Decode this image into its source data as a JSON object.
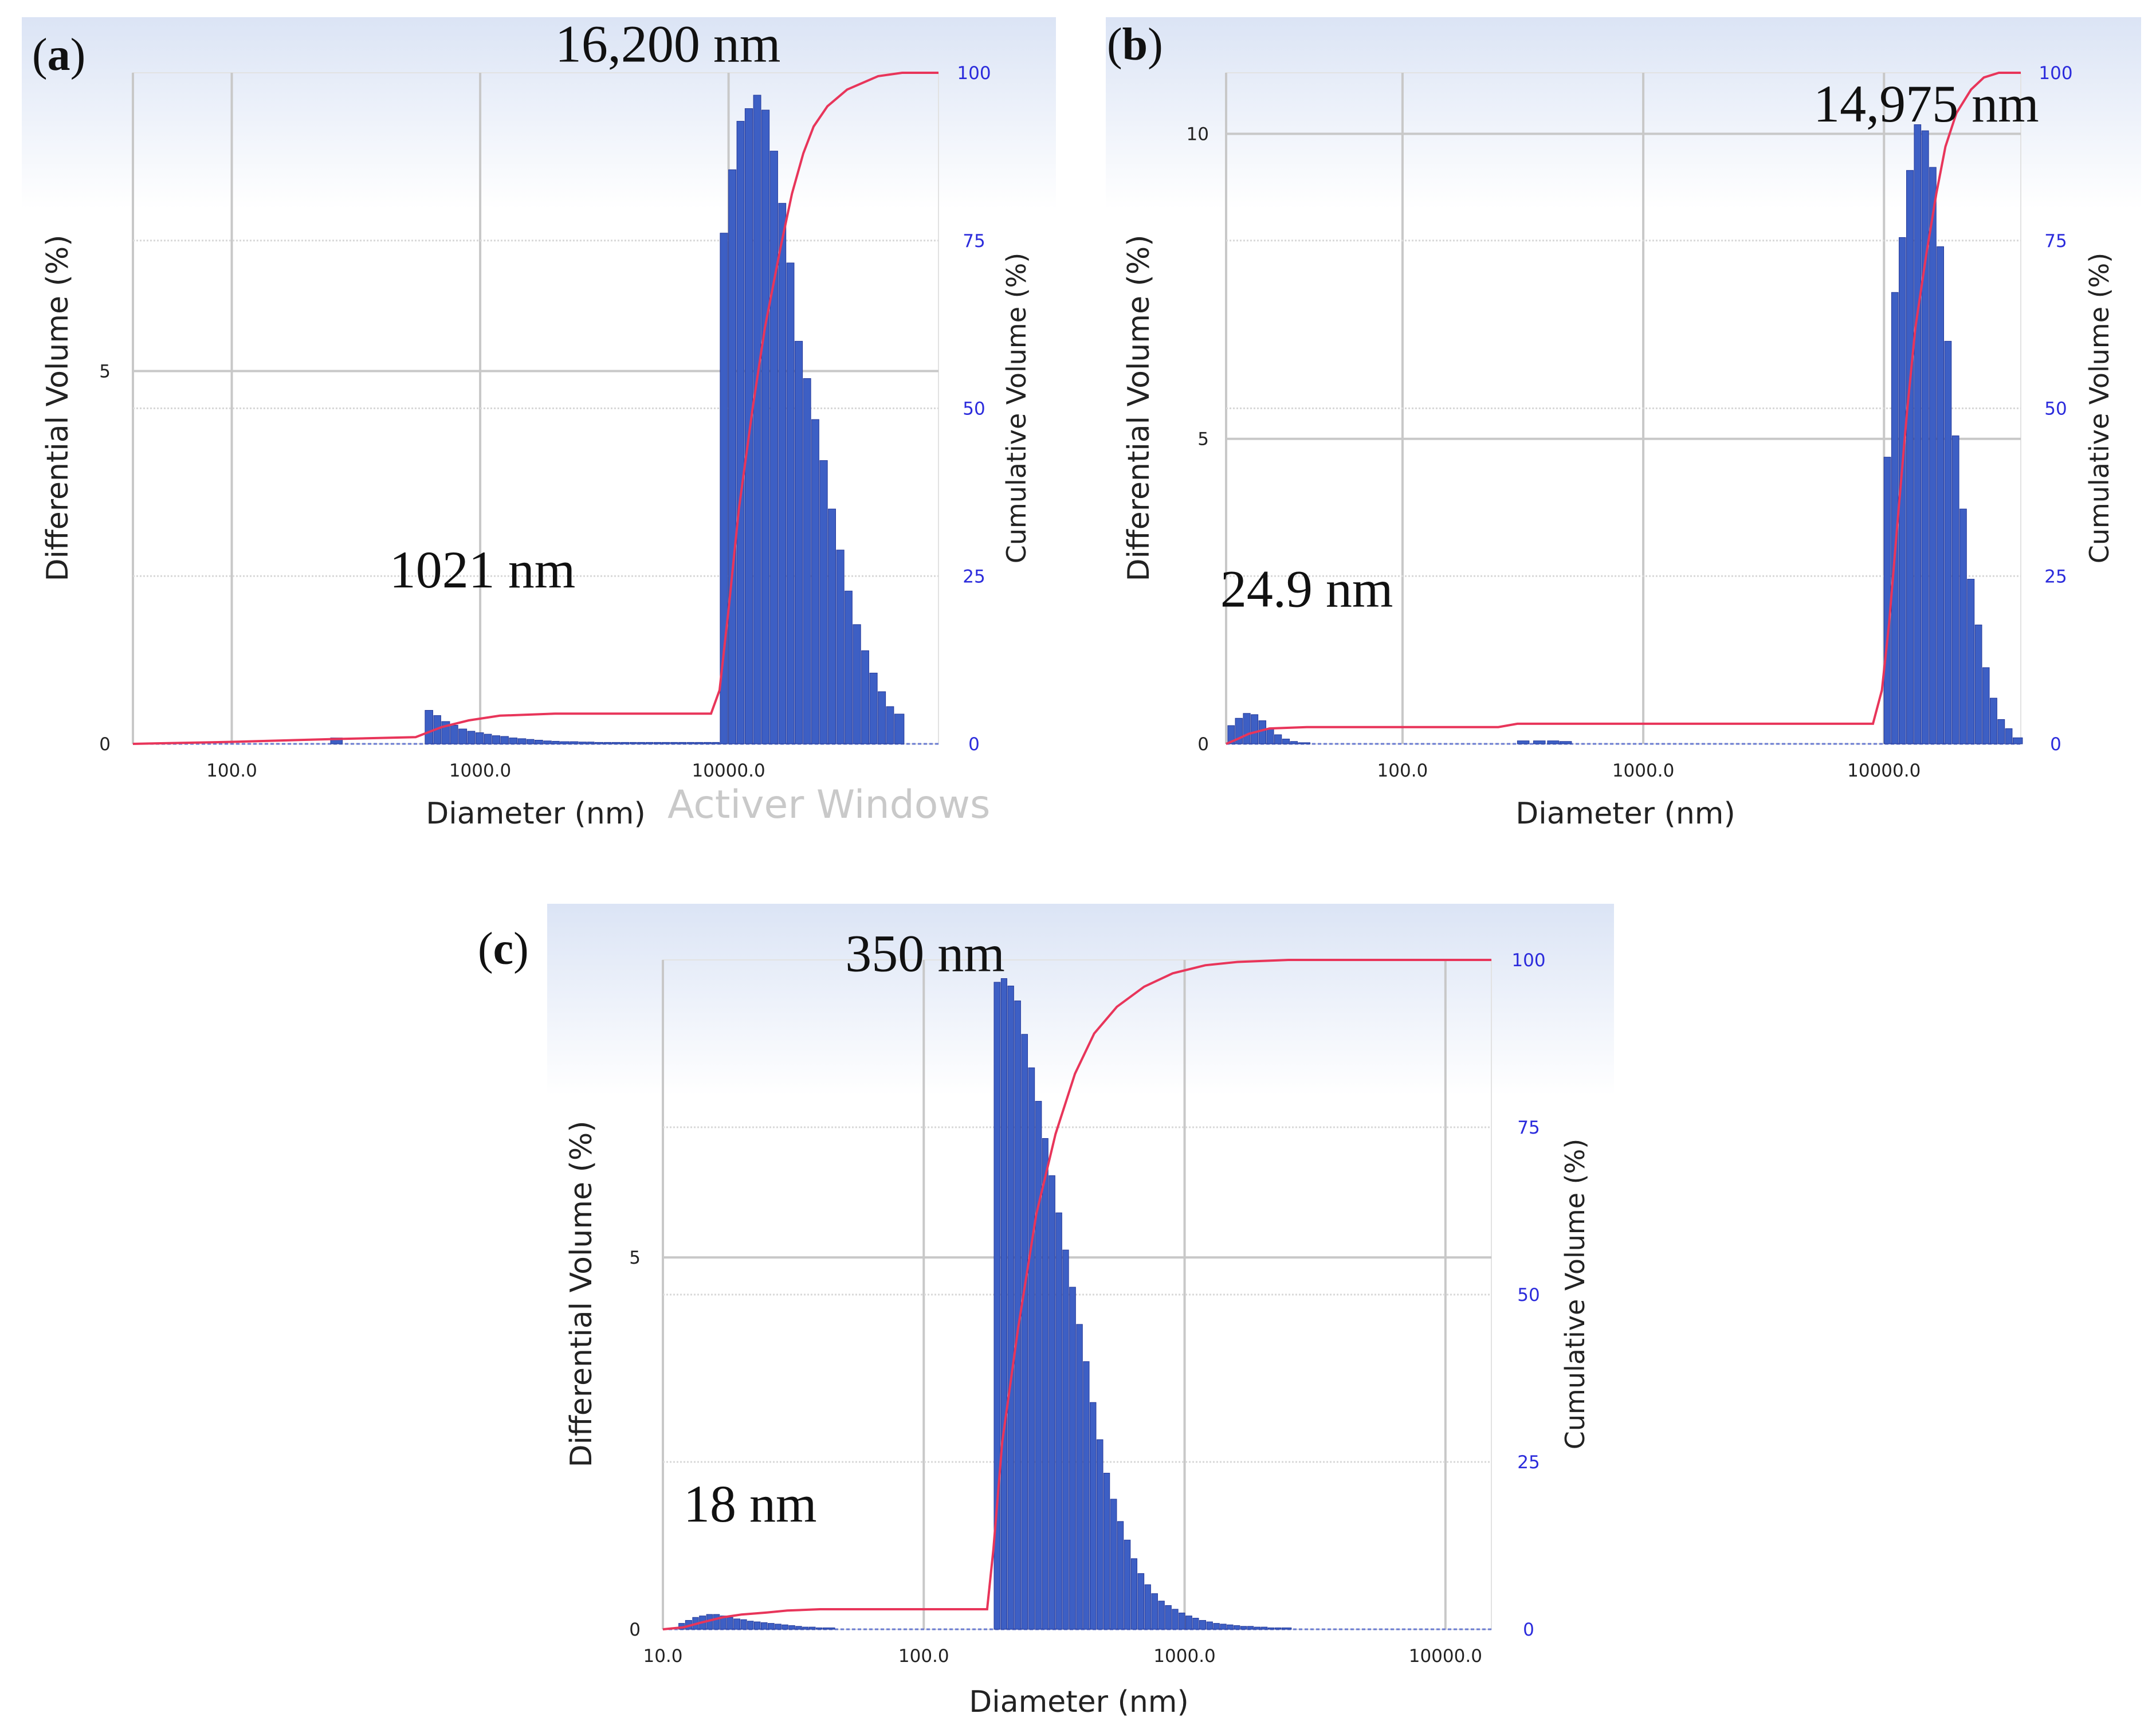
{
  "figure": {
    "watermark": "Activer Windows"
  },
  "colors": {
    "bar": "#3d5fc4",
    "bar_edge": "#23389a",
    "curve": "#e8355a",
    "right_tick": "#2b2bdc",
    "grid": "#c8c8c8",
    "header_top": "#dde6f6"
  },
  "chart_data": [
    {
      "panel": "(a)",
      "type": "bar",
      "x_scale": "log",
      "xlim": [
        40,
        70000
      ],
      "ylim": [
        0,
        9
      ],
      "y2lim": [
        0,
        100
      ],
      "xlabel": "Diameter (nm)",
      "ylabel": "Differential Volume (%)",
      "y2label": "Cumulative Volume (%)",
      "x_ticks": [
        100,
        1000,
        10000
      ],
      "x_tick_labels": [
        "100.0",
        "1000.0",
        "10000.0"
      ],
      "y_ticks": [
        0,
        5
      ],
      "y_tick_labels": [
        "0",
        "5"
      ],
      "y2_ticks": [
        0,
        25,
        50,
        75,
        100
      ],
      "y2_tick_labels": [
        "0",
        "25",
        "50",
        "75",
        "100"
      ],
      "annotations": [
        {
          "text": "16,200 nm",
          "x": 16200,
          "y": 9.15,
          "align": "right"
        },
        {
          "text": "1021 nm",
          "x": 1021,
          "y": 2.1,
          "align": "center"
        }
      ],
      "bars": {
        "x": [
          250,
          600,
          650,
          700,
          760,
          820,
          890,
          960,
          1040,
          1120,
          1210,
          1310,
          1420,
          1540,
          1660,
          1800,
          1950,
          2100,
          2300,
          2500,
          2700,
          2900,
          3150,
          3400,
          3700,
          4000,
          4300,
          4650,
          5000,
          5400,
          5850,
          6300,
          6800,
          7350,
          7950,
          8600,
          9250,
          10000,
          10800,
          11650,
          12600,
          13600,
          14700,
          15900,
          17150,
          18500,
          20000,
          21600,
          23300,
          25200,
          27200,
          29400,
          31700,
          34300,
          37000,
          40000,
          43200,
          46600
        ],
        "values": [
          0.08,
          0.45,
          0.38,
          0.3,
          0.25,
          0.2,
          0.17,
          0.15,
          0.13,
          0.11,
          0.1,
          0.08,
          0.07,
          0.06,
          0.05,
          0.04,
          0.035,
          0.03,
          0.03,
          0.025,
          0.025,
          0.02,
          0.02,
          0.02,
          0.02,
          0.02,
          0.02,
          0.02,
          0.02,
          0.02,
          0.02,
          0.02,
          0.02,
          0.02,
          0.02,
          0.02,
          6.85,
          7.7,
          8.35,
          8.52,
          8.7,
          8.5,
          7.95,
          7.25,
          6.45,
          5.4,
          4.9,
          4.35,
          3.8,
          3.15,
          2.6,
          2.05,
          1.6,
          1.25,
          0.95,
          0.7,
          0.5,
          0.4
        ]
      },
      "cumulative": {
        "x": [
          40,
          100,
          250,
          550,
          700,
          900,
          1200,
          2000,
          4000,
          8500,
          9200,
          10000,
          11000,
          12500,
          14000,
          16200,
          18000,
          20000,
          22000,
          25000,
          30000,
          40000,
          50000,
          70000
        ],
        "values": [
          0,
          0.3,
          0.7,
          1,
          2.5,
          3.5,
          4.2,
          4.5,
          4.5,
          4.5,
          8,
          20,
          35,
          50,
          62,
          74,
          82,
          88,
          92,
          95,
          97.5,
          99.5,
          100,
          100
        ]
      }
    },
    {
      "panel": "(b)",
      "type": "bar",
      "x_scale": "log",
      "xlim": [
        18.5,
        37000
      ],
      "ylim": [
        0,
        11
      ],
      "y2lim": [
        0,
        100
      ],
      "xlabel": "Diameter (nm)",
      "ylabel": "Differential Volume (%)",
      "y2label": "Cumulative Volume (%)",
      "x_ticks": [
        100,
        1000,
        10000
      ],
      "x_tick_labels": [
        "100.0",
        "1000.0",
        "10000.0"
      ],
      "y_ticks": [
        0,
        5,
        10
      ],
      "y_tick_labels": [
        "0",
        "5",
        "10"
      ],
      "y2_ticks": [
        0,
        25,
        50,
        75,
        100
      ],
      "y2_tick_labels": [
        "0",
        "25",
        "50",
        "75",
        "100"
      ],
      "annotations": [
        {
          "text": "14,975 nm",
          "x": 14975,
          "y": 10.2,
          "align": "center"
        },
        {
          "text": "24.9 nm",
          "x": 40,
          "y": 2.25,
          "align": "center"
        }
      ],
      "bars": {
        "x": [
          18.8,
          20.2,
          21.8,
          23.5,
          25.3,
          27.3,
          29.4,
          31.7,
          34.2,
          36.9,
          300,
          350,
          400,
          450,
          10000,
          10750,
          11550,
          12400,
          13350,
          14350,
          15450,
          16600,
          17850,
          19200,
          20650,
          22200,
          23900,
          25700,
          27600,
          29700,
          31950,
          34350
        ],
        "values": [
          0.3,
          0.42,
          0.5,
          0.48,
          0.38,
          0.25,
          0.15,
          0.08,
          0.04,
          0.02,
          0.05,
          0.05,
          0.05,
          0.04,
          4.7,
          7.4,
          8.3,
          9.4,
          10.15,
          10.05,
          9.45,
          8.15,
          6.6,
          5.05,
          3.85,
          2.7,
          1.95,
          1.25,
          0.75,
          0.4,
          0.25,
          0.1
        ]
      },
      "cumulative": {
        "x": [
          18.5,
          20,
          23,
          28,
          40,
          100,
          250,
          300,
          600,
          1000,
          3000,
          9000,
          9800,
          10500,
          11500,
          12500,
          13500,
          15000,
          16500,
          18000,
          20000,
          23000,
          26000,
          30000,
          33000,
          37000
        ],
        "values": [
          0,
          0.5,
          1.5,
          2.3,
          2.5,
          2.5,
          2.5,
          3,
          3,
          3,
          3,
          3,
          8,
          18,
          35,
          50,
          62,
          73,
          82,
          89,
          94,
          97.5,
          99.3,
          100,
          100,
          100
        ]
      }
    },
    {
      "panel": "(c)",
      "type": "bar",
      "x_scale": "log",
      "xlim": [
        10,
        15000
      ],
      "ylim": [
        0,
        9
      ],
      "y2lim": [
        0,
        100
      ],
      "xlabel": "Diameter (nm)",
      "ylabel": "Differential Volume (%)",
      "y2label": "Cumulative Volume (%)",
      "x_ticks": [
        10,
        100,
        1000,
        10000
      ],
      "x_tick_labels": [
        "10.0",
        "100.0",
        "1000.0",
        "10000.0"
      ],
      "y_ticks": [
        0,
        5
      ],
      "y_tick_labels": [
        "0",
        "5"
      ],
      "y2_ticks": [
        0,
        25,
        50,
        75,
        100
      ],
      "y2_tick_labels": [
        "0",
        "25",
        "50",
        "75",
        "100"
      ],
      "annotations": [
        {
          "text": "350 nm",
          "x": 50,
          "y": 8.85,
          "align": "left"
        },
        {
          "text": "18 nm",
          "x": 12,
          "y": 1.45,
          "align": "left"
        }
      ],
      "bars": {
        "x": [
          11.5,
          12.2,
          13,
          13.8,
          14.7,
          15.6,
          16.6,
          17.6,
          18.7,
          19.9,
          21.1,
          22.4,
          23.8,
          25.3,
          26.9,
          28.6,
          30.4,
          32.3,
          34.3,
          36.4,
          38.7,
          41.1,
          186,
          198,
          210,
          223,
          237,
          252,
          268,
          285,
          302,
          321,
          341,
          362,
          385,
          409,
          434,
          461,
          490,
          520,
          553,
          587,
          624,
          662,
          704,
          747,
          794,
          843,
          896,
          951,
          1010,
          1075,
          1140,
          1215,
          1290,
          1370,
          1455,
          1545,
          1640,
          1740,
          1850,
          1965,
          2090,
          2220,
          2360
        ],
        "values": [
          0.08,
          0.12,
          0.16,
          0.18,
          0.2,
          0.2,
          0.18,
          0.16,
          0.14,
          0.13,
          0.11,
          0.1,
          0.09,
          0.08,
          0.07,
          0.06,
          0.05,
          0.04,
          0.03,
          0.03,
          0.02,
          0.02,
          8.7,
          8.75,
          8.65,
          8.45,
          8.0,
          7.55,
          7.1,
          6.6,
          6.1,
          5.6,
          5.1,
          4.6,
          4.1,
          3.6,
          3.05,
          2.55,
          2.1,
          1.75,
          1.45,
          1.2,
          0.95,
          0.75,
          0.6,
          0.48,
          0.38,
          0.32,
          0.27,
          0.22,
          0.18,
          0.15,
          0.12,
          0.1,
          0.08,
          0.07,
          0.06,
          0.05,
          0.04,
          0.04,
          0.03,
          0.03,
          0.02,
          0.02,
          0.02
        ]
      },
      "cumulative": {
        "x": [
          10,
          12,
          14,
          17,
          20,
          25,
          30,
          40,
          60,
          100,
          150,
          175,
          185,
          200,
          230,
          270,
          320,
          380,
          450,
          550,
          700,
          900,
          1200,
          1600,
          2500,
          5000,
          10000,
          15000
        ],
        "values": [
          0,
          0.3,
          1,
          1.8,
          2.2,
          2.5,
          2.8,
          3,
          3,
          3,
          3,
          3,
          12,
          28,
          45,
          62,
          74,
          83,
          89,
          93,
          96,
          98,
          99.2,
          99.7,
          100,
          100,
          100,
          100
        ]
      }
    }
  ]
}
